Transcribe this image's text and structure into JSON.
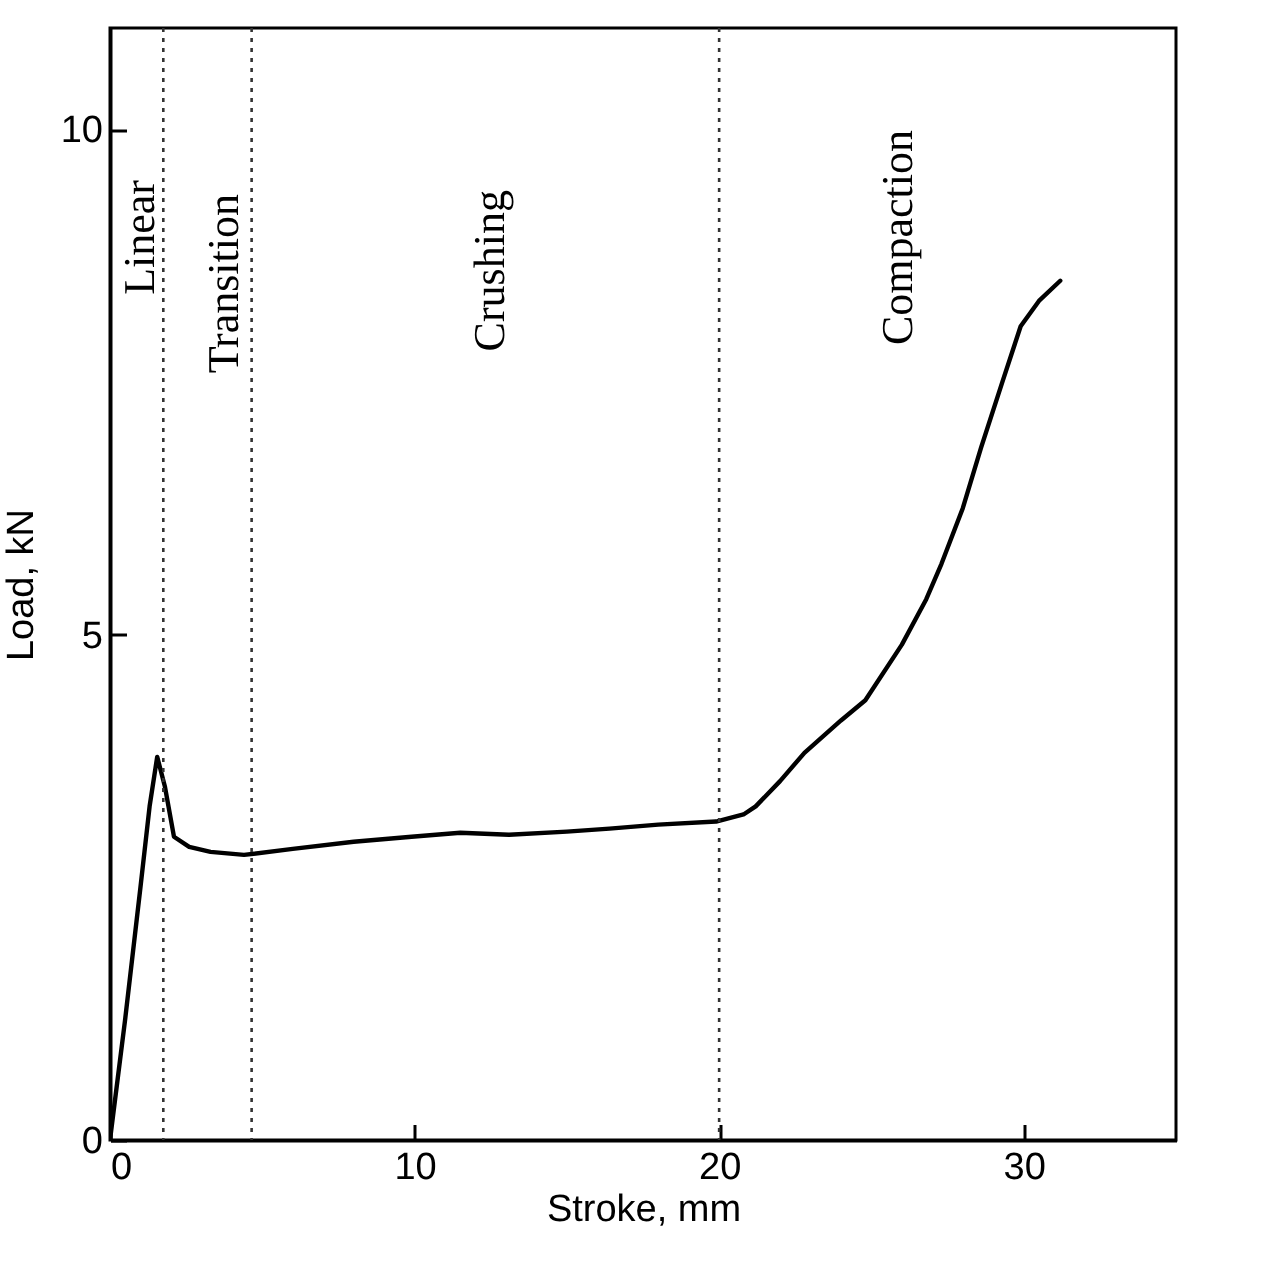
{
  "chart_data": {
    "type": "line",
    "xlabel": "Stroke, mm",
    "ylabel": "Load, kN",
    "x": [
      0,
      0.5,
      1.0,
      1.3,
      1.55,
      1.8,
      2.1,
      2.6,
      3.3,
      4.4,
      6.0,
      8.0,
      9.9,
      11.5,
      13.1,
      15.0,
      16.4,
      18.0,
      19.9,
      20.8,
      21.2,
      22.0,
      22.8,
      24.0,
      24.8,
      26.0,
      26.8,
      27.3,
      28.0,
      28.6,
      29.3,
      29.9,
      30.5,
      31.2
    ],
    "series": [
      {
        "color": "#000000",
        "values": [
          0,
          1.2,
          2.5,
          3.3,
          3.79,
          3.5,
          3.0,
          2.9,
          2.85,
          2.82,
          2.88,
          2.95,
          3.0,
          3.04,
          3.02,
          3.05,
          3.08,
          3.12,
          3.15,
          3.22,
          3.3,
          3.55,
          3.83,
          4.15,
          4.35,
          4.9,
          5.35,
          5.7,
          6.25,
          6.85,
          7.5,
          8.05,
          8.3,
          8.5
        ]
      }
    ],
    "xlim": [
      0,
      35
    ],
    "xticks": [
      0,
      10,
      20,
      30
    ],
    "ylim": [
      0,
      11
    ],
    "yticks": [
      0,
      5,
      10
    ],
    "grid": false,
    "line_style": "solid",
    "ref_lines": [
      {
        "axis": "x",
        "value": 1.75,
        "line_style": "dotted"
      },
      {
        "axis": "x",
        "value": 4.65,
        "line_style": "dotted"
      },
      {
        "axis": "x",
        "value": 20.0,
        "line_style": "dotted"
      }
    ],
    "annotations": [
      "Linear",
      "Transition",
      "Crushing",
      "Compaction"
    ]
  }
}
